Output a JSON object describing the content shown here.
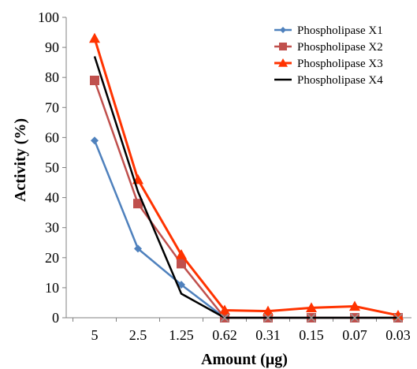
{
  "chart_data": {
    "type": "line",
    "title": "",
    "xlabel": "Amount (µg)",
    "ylabel": "Activity (%)",
    "categories": [
      "5",
      "2.5",
      "1.25",
      "0.62",
      "0.31",
      "0.15",
      "0.07",
      "0.03"
    ],
    "ylim": [
      0,
      100
    ],
    "yticks": [
      0,
      10,
      20,
      30,
      40,
      50,
      60,
      70,
      80,
      90,
      100
    ],
    "grid": false,
    "legend_position": "top-right",
    "series": [
      {
        "name": "Phospholipase X1",
        "marker": "diamond",
        "color": "#4f81bd",
        "values": [
          59,
          23,
          11,
          0,
          0,
          0,
          0,
          0
        ]
      },
      {
        "name": "Phospholipase X2",
        "marker": "square",
        "color": "#c0504d",
        "values": [
          79,
          38,
          18,
          0,
          0,
          0,
          0,
          0
        ]
      },
      {
        "name": "Phospholipase X3",
        "marker": "triangle",
        "color": "#ff3300",
        "values": [
          93,
          46,
          21,
          2.5,
          2.2,
          3.3,
          3.8,
          0.8
        ]
      },
      {
        "name": "Phospholipase X4",
        "marker": "none",
        "color": "#000000",
        "values": [
          87,
          42,
          8,
          0,
          0,
          0,
          0,
          0
        ]
      }
    ]
  }
}
